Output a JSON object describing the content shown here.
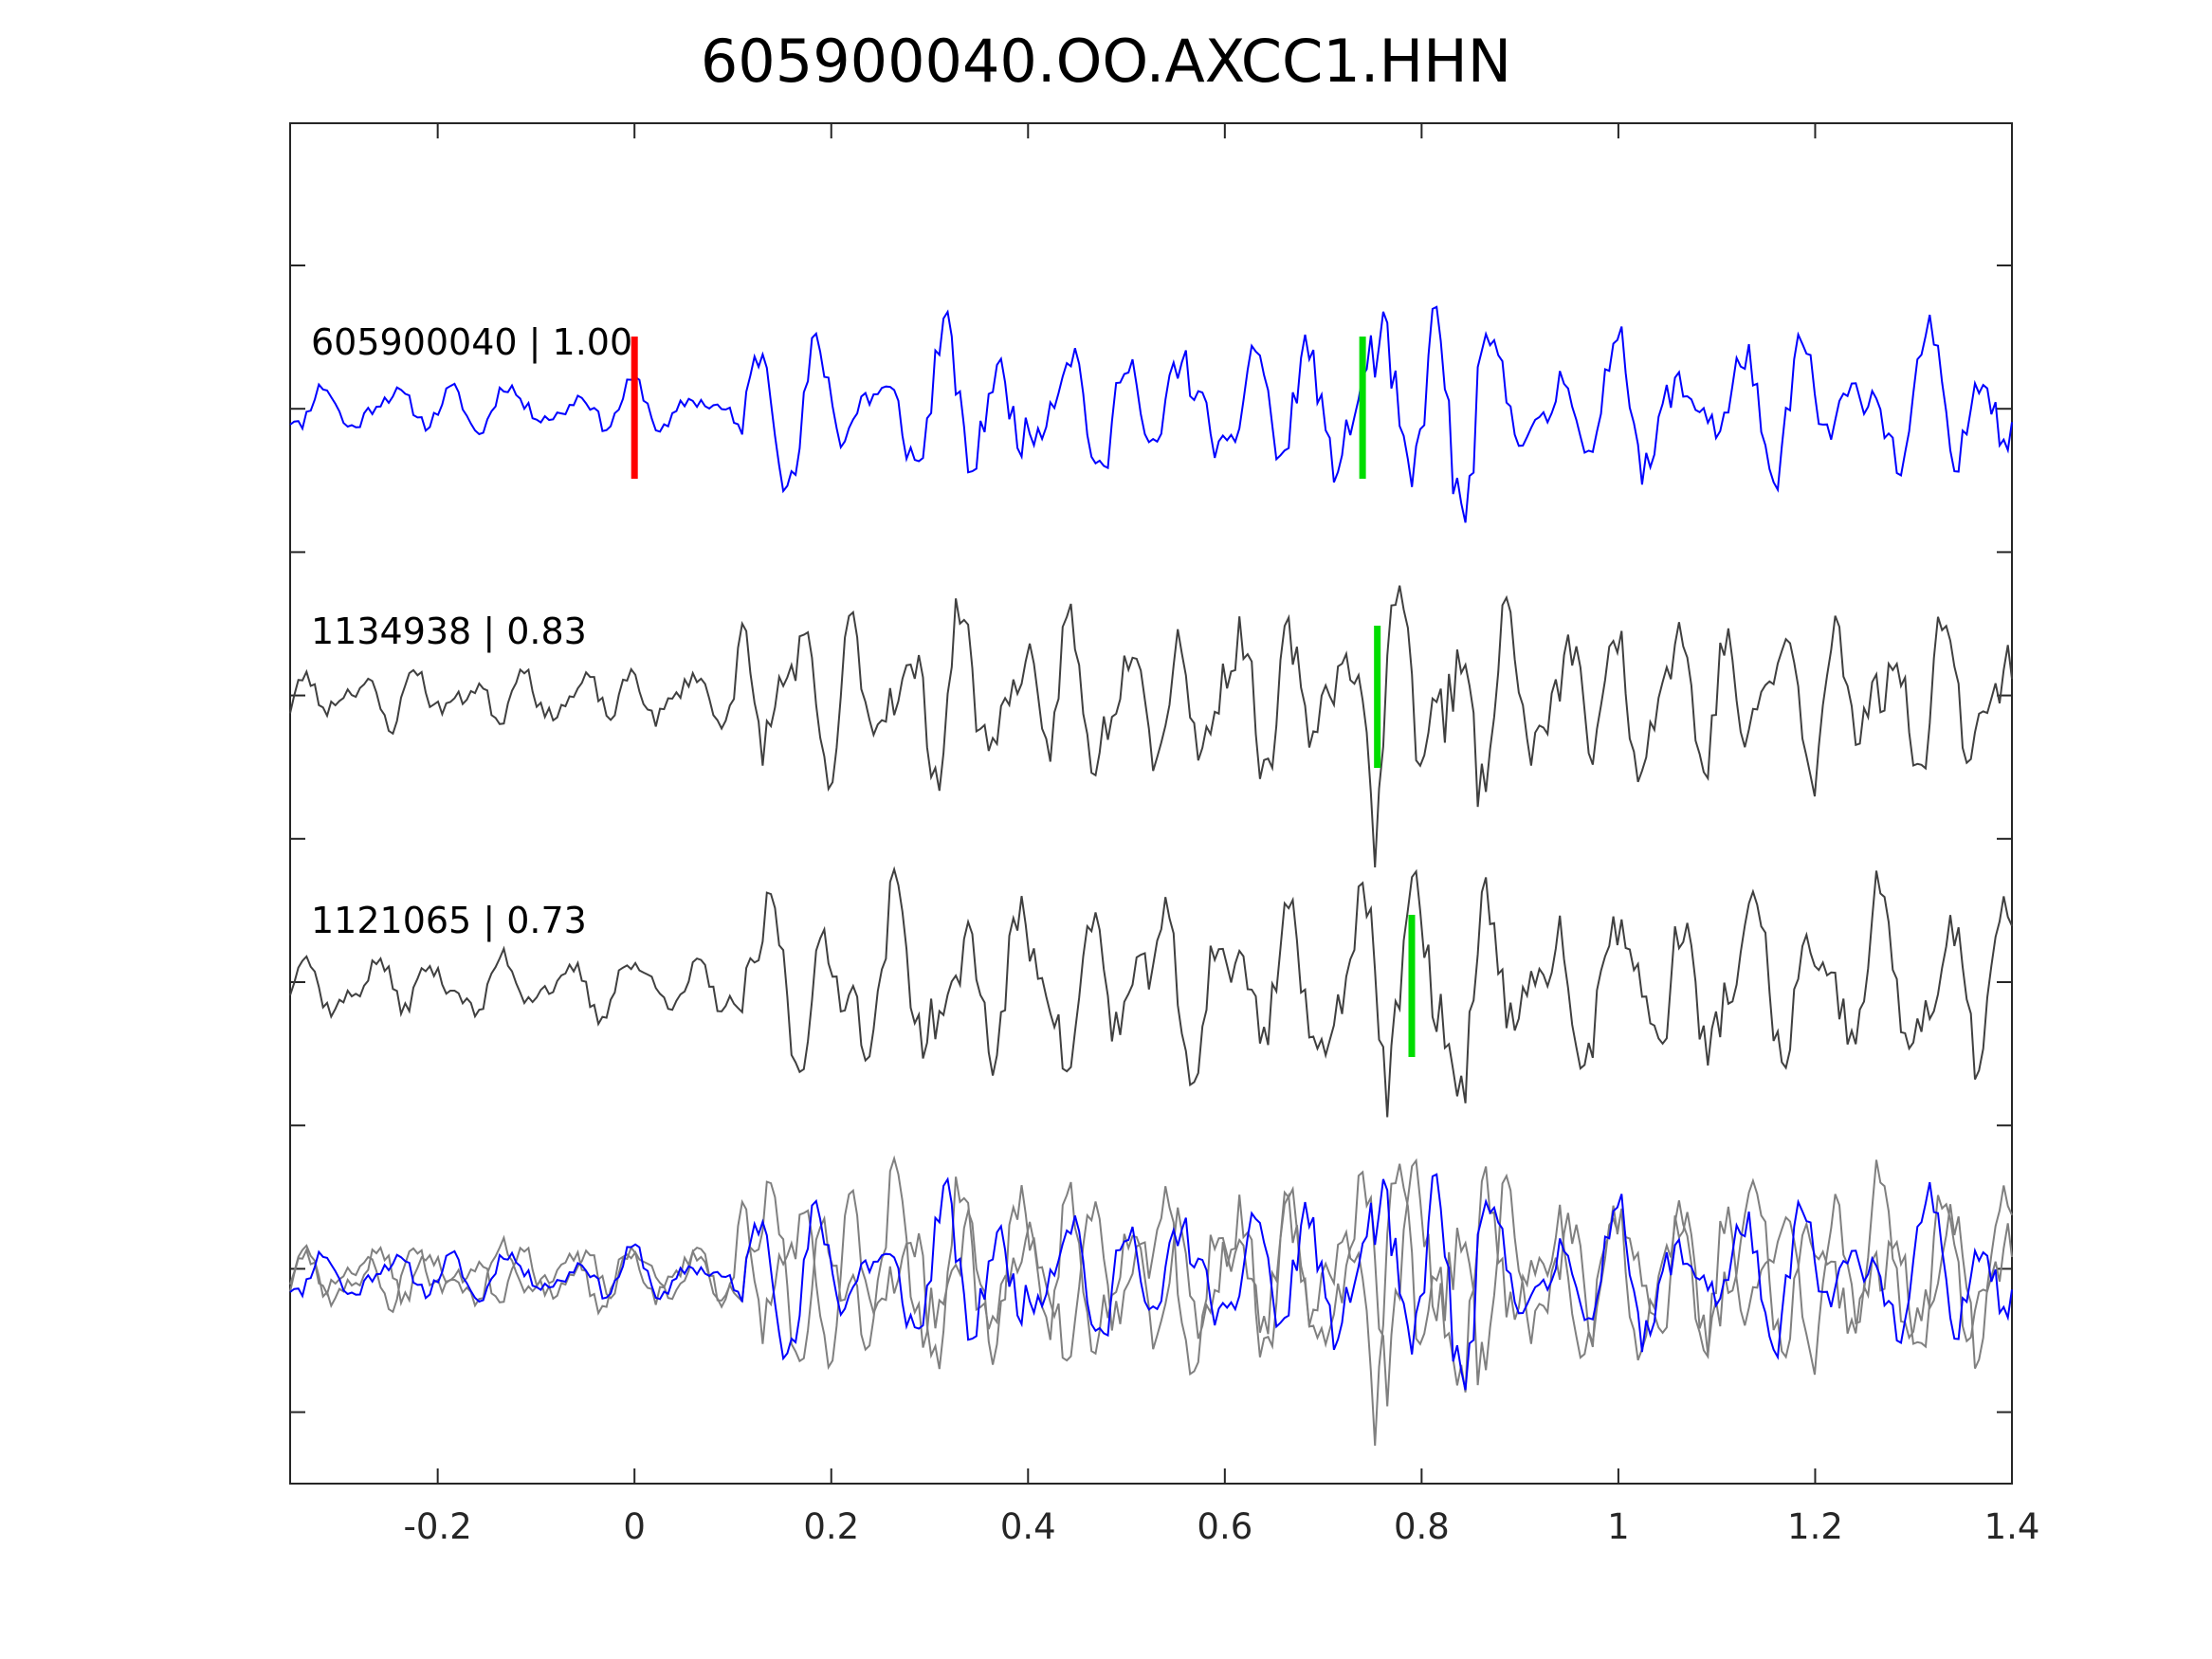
{
  "chart_data": {
    "type": "line",
    "title": "605900040.OO.AXCC1.HHN",
    "xlabel": "",
    "ylabel": "",
    "xlim": [
      -0.35,
      1.4
    ],
    "x_ticks": [
      -0.2,
      0,
      0.2,
      0.4,
      0.6,
      0.8,
      1,
      1.2,
      1.4
    ],
    "x_tick_labels": [
      "-0.2",
      "0",
      "0.2",
      "0.4",
      "0.6",
      "0.8",
      "1",
      "1.2",
      "1.4"
    ],
    "y_ticks_count": 9,
    "grid": false,
    "colors": {
      "template": "#0000ff",
      "match": "#404040",
      "overlay_match": "#808080",
      "p_pick": "#ff0000",
      "s_pick": "#00dd00",
      "axes": "#262626"
    },
    "traces": [
      {
        "label": "605900040 | 1.00",
        "id": "605900040",
        "cc": 1.0,
        "color": "#0000ff",
        "p_pick": 0.0,
        "s_pick": 0.74
      },
      {
        "label": "1134938 | 0.83",
        "id": "1134938",
        "cc": 0.83,
        "color": "#404040",
        "s_pick": 0.755
      },
      {
        "label": "1121065 | 0.73",
        "id": "1121065",
        "cc": 0.73,
        "color": "#404040",
        "s_pick": 0.79
      }
    ],
    "overlay": {
      "description_series": [
        "605900040",
        "1134938",
        "1121065"
      ]
    }
  }
}
